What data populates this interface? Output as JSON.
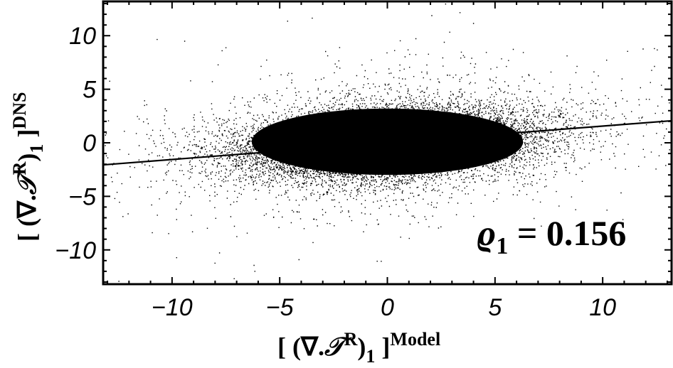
{
  "chart_data": {
    "type": "scatter",
    "xlabel": {
      "pre": "[ (∇.",
      "sym": "𝒯",
      "sup1": "R",
      "close": ")",
      "sub": "1",
      "bracket": " ]",
      "sup2": "Model"
    },
    "ylabel": {
      "pre": "[ (∇.",
      "sym": "𝒯",
      "sup1": "R",
      "close": ")",
      "sub": "1",
      "bracket": " ]",
      "sup2": "DNS"
    },
    "xlim": [
      -13.2,
      13.2
    ],
    "ylim": [
      -13.2,
      13.2
    ],
    "xticks": [
      -10,
      -5,
      0,
      5,
      10
    ],
    "xtick_labels": [
      "−10",
      "−5",
      "0",
      "5",
      "10"
    ],
    "yticks": [
      -10,
      -5,
      0,
      5,
      10
    ],
    "ytick_labels": [
      "−10",
      "−5",
      "0",
      "5",
      "10"
    ],
    "fit_line": {
      "slope": 0.156,
      "intercept": 0.0,
      "x": [
        -13.2,
        13.2
      ]
    },
    "annotation": {
      "symbol": "ϱ",
      "sub": "1",
      "text": " = 0.156"
    },
    "point_cloud": {
      "center": [
        0,
        0
      ],
      "x_spread_sd": 3.4,
      "y_spread_sd": 1.55,
      "n_points": 14000
    },
    "grid": false,
    "legend": "none",
    "marker_color": "#000000"
  }
}
